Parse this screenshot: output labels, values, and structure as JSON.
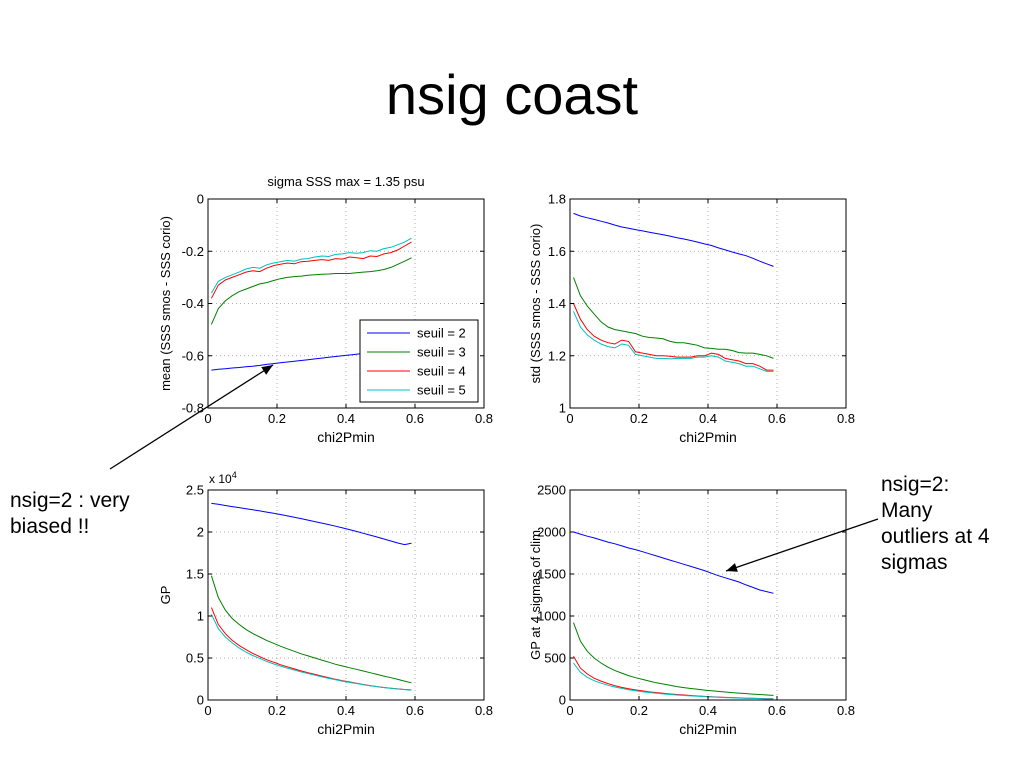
{
  "slide": {
    "title": "nsig coast"
  },
  "annotations": [
    {
      "lines": [
        "nsig=2 : very",
        "biased !!"
      ]
    },
    {
      "lines": [
        "nsig=2:",
        "Many",
        "outliers at 4",
        "sigmas"
      ]
    }
  ],
  "colors": {
    "seuil2": "#0000ff",
    "seuil3": "#008000",
    "seuil4": "#ff0000",
    "seuil5": "#00bfbf",
    "grid": "#999999",
    "axis": "#000000"
  },
  "chart_data": [
    {
      "id": "mean",
      "type": "line",
      "title": "sigma SSS max = 1.35 psu",
      "xlabel": "chi2Pmin",
      "ylabel": "mean (SSS smos - SSS corio)",
      "xlim": [
        0,
        0.8
      ],
      "ylim": [
        -0.8,
        0
      ],
      "xticks": [
        0,
        0.2,
        0.4,
        0.6,
        0.8
      ],
      "xtick_labels": [
        "0",
        "0.2",
        "0.4",
        "0.6",
        "0.8"
      ],
      "yticks": [
        -0.8,
        -0.6,
        -0.4,
        -0.2,
        0
      ],
      "ytick_labels": [
        "-0.8",
        "-0.6",
        "-0.4",
        "-0.2",
        "0"
      ],
      "grid": true,
      "legend": {
        "position": "bottom-right",
        "entries": [
          "seuil = 2",
          "seuil = 3",
          "seuil = 4",
          "seuil = 5"
        ]
      },
      "x": [
        0.01,
        0.03,
        0.05,
        0.07,
        0.09,
        0.11,
        0.13,
        0.15,
        0.17,
        0.19,
        0.21,
        0.23,
        0.25,
        0.27,
        0.29,
        0.31,
        0.33,
        0.35,
        0.37,
        0.39,
        0.41,
        0.43,
        0.45,
        0.47,
        0.49,
        0.51,
        0.53,
        0.55,
        0.57,
        0.59
      ],
      "series": [
        {
          "name": "seuil = 2",
          "color": "#0000ff",
          "values": [
            -0.655,
            -0.652,
            -0.65,
            -0.647,
            -0.645,
            -0.642,
            -0.64,
            -0.637,
            -0.633,
            -0.63,
            -0.627,
            -0.624,
            -0.621,
            -0.618,
            -0.615,
            -0.612,
            -0.609,
            -0.606,
            -0.603,
            -0.6,
            -0.597,
            -0.594,
            -0.591,
            -0.588,
            -0.585,
            -0.582,
            -0.578,
            -0.575,
            -0.572,
            -0.57
          ]
        },
        {
          "name": "seuil = 3",
          "color": "#008000",
          "values": [
            -0.48,
            -0.42,
            -0.39,
            -0.37,
            -0.355,
            -0.345,
            -0.335,
            -0.325,
            -0.32,
            -0.312,
            -0.305,
            -0.3,
            -0.297,
            -0.295,
            -0.292,
            -0.29,
            -0.288,
            -0.287,
            -0.285,
            -0.285,
            -0.285,
            -0.282,
            -0.28,
            -0.278,
            -0.275,
            -0.27,
            -0.262,
            -0.25,
            -0.238,
            -0.225
          ]
        },
        {
          "name": "seuil = 4",
          "color": "#ff0000",
          "values": [
            -0.38,
            -0.33,
            -0.31,
            -0.3,
            -0.29,
            -0.28,
            -0.275,
            -0.278,
            -0.265,
            -0.255,
            -0.25,
            -0.245,
            -0.248,
            -0.24,
            -0.238,
            -0.235,
            -0.232,
            -0.235,
            -0.228,
            -0.23,
            -0.222,
            -0.225,
            -0.228,
            -0.218,
            -0.22,
            -0.21,
            -0.205,
            -0.195,
            -0.18,
            -0.165
          ]
        },
        {
          "name": "seuil = 5",
          "color": "#00bfbf",
          "values": [
            -0.36,
            -0.315,
            -0.3,
            -0.29,
            -0.28,
            -0.268,
            -0.262,
            -0.265,
            -0.252,
            -0.245,
            -0.24,
            -0.235,
            -0.238,
            -0.23,
            -0.228,
            -0.222,
            -0.218,
            -0.22,
            -0.212,
            -0.21,
            -0.205,
            -0.208,
            -0.205,
            -0.198,
            -0.2,
            -0.19,
            -0.185,
            -0.175,
            -0.165,
            -0.15
          ]
        }
      ]
    },
    {
      "id": "std",
      "type": "line",
      "title": "",
      "xlabel": "chi2Pmin",
      "ylabel": "std (SSS smos - SSS corio)",
      "xlim": [
        0,
        0.8
      ],
      "ylim": [
        1,
        1.8
      ],
      "xticks": [
        0,
        0.2,
        0.4,
        0.6,
        0.8
      ],
      "xtick_labels": [
        "0",
        "0.2",
        "0.4",
        "0.6",
        "0.8"
      ],
      "yticks": [
        1,
        1.2,
        1.4,
        1.6,
        1.8
      ],
      "ytick_labels": [
        "1",
        "1.2",
        "1.4",
        "1.6",
        "1.8"
      ],
      "grid": true,
      "x": [
        0.01,
        0.03,
        0.05,
        0.07,
        0.09,
        0.11,
        0.13,
        0.15,
        0.17,
        0.19,
        0.21,
        0.23,
        0.25,
        0.27,
        0.29,
        0.31,
        0.33,
        0.35,
        0.37,
        0.39,
        0.41,
        0.43,
        0.45,
        0.47,
        0.49,
        0.51,
        0.53,
        0.55,
        0.57,
        0.59
      ],
      "series": [
        {
          "name": "seuil = 2",
          "color": "#0000ff",
          "values": [
            1.745,
            1.735,
            1.728,
            1.722,
            1.715,
            1.708,
            1.7,
            1.693,
            1.688,
            1.683,
            1.678,
            1.673,
            1.668,
            1.663,
            1.658,
            1.652,
            1.647,
            1.641,
            1.635,
            1.628,
            1.622,
            1.613,
            1.605,
            1.597,
            1.59,
            1.583,
            1.573,
            1.562,
            1.552,
            1.542
          ]
        },
        {
          "name": "seuil = 3",
          "color": "#008000",
          "values": [
            1.5,
            1.43,
            1.39,
            1.36,
            1.33,
            1.31,
            1.3,
            1.295,
            1.29,
            1.285,
            1.275,
            1.27,
            1.268,
            1.265,
            1.255,
            1.25,
            1.25,
            1.245,
            1.24,
            1.23,
            1.228,
            1.225,
            1.225,
            1.22,
            1.212,
            1.21,
            1.21,
            1.205,
            1.2,
            1.19
          ]
        },
        {
          "name": "seuil = 4",
          "color": "#ff0000",
          "values": [
            1.4,
            1.34,
            1.3,
            1.275,
            1.26,
            1.25,
            1.245,
            1.26,
            1.255,
            1.215,
            1.21,
            1.205,
            1.2,
            1.2,
            1.198,
            1.195,
            1.195,
            1.195,
            1.2,
            1.2,
            1.21,
            1.205,
            1.19,
            1.185,
            1.18,
            1.17,
            1.17,
            1.16,
            1.145,
            1.145
          ]
        },
        {
          "name": "seuil = 5",
          "color": "#00bfbf",
          "values": [
            1.37,
            1.31,
            1.28,
            1.26,
            1.245,
            1.235,
            1.23,
            1.245,
            1.24,
            1.205,
            1.2,
            1.195,
            1.19,
            1.19,
            1.188,
            1.19,
            1.19,
            1.19,
            1.195,
            1.195,
            1.2,
            1.195,
            1.18,
            1.175,
            1.17,
            1.16,
            1.16,
            1.15,
            1.14,
            1.14
          ]
        }
      ]
    },
    {
      "id": "gp",
      "type": "line",
      "title": "",
      "xlabel": "chi2Pmin",
      "ylabel": "GP",
      "y_multiplier_base": "x 10",
      "y_multiplier_exp": "4",
      "xlim": [
        0,
        0.8
      ],
      "ylim": [
        0,
        25000
      ],
      "xticks": [
        0,
        0.2,
        0.4,
        0.6,
        0.8
      ],
      "xtick_labels": [
        "0",
        "0.2",
        "0.4",
        "0.6",
        "0.8"
      ],
      "yticks": [
        0,
        5000,
        10000,
        15000,
        20000,
        25000
      ],
      "ytick_labels": [
        "0",
        "0.5",
        "1",
        "1.5",
        "2",
        "2.5"
      ],
      "grid": true,
      "x": [
        0.01,
        0.03,
        0.05,
        0.07,
        0.09,
        0.11,
        0.13,
        0.15,
        0.17,
        0.19,
        0.21,
        0.23,
        0.25,
        0.27,
        0.29,
        0.31,
        0.33,
        0.35,
        0.37,
        0.39,
        0.41,
        0.43,
        0.45,
        0.47,
        0.49,
        0.51,
        0.53,
        0.55,
        0.57,
        0.59
      ],
      "series": [
        {
          "name": "seuil = 2",
          "color": "#0000ff",
          "values": [
            23400,
            23300,
            23150,
            23020,
            22900,
            22770,
            22640,
            22510,
            22370,
            22230,
            22080,
            21920,
            21760,
            21590,
            21420,
            21240,
            21060,
            20880,
            20690,
            20490,
            20280,
            20070,
            19850,
            19630,
            19400,
            19170,
            18930,
            18690,
            18500,
            18650
          ]
        },
        {
          "name": "seuil = 3",
          "color": "#008000",
          "values": [
            14800,
            12200,
            10700,
            9700,
            9000,
            8400,
            7900,
            7500,
            7100,
            6750,
            6400,
            6100,
            5800,
            5500,
            5250,
            5000,
            4750,
            4500,
            4250,
            4050,
            3850,
            3650,
            3450,
            3250,
            3050,
            2850,
            2650,
            2450,
            2250,
            2050
          ]
        },
        {
          "name": "seuil = 4",
          "color": "#ff0000",
          "values": [
            11000,
            9000,
            7900,
            7100,
            6500,
            6000,
            5550,
            5150,
            4800,
            4500,
            4200,
            3950,
            3700,
            3470,
            3250,
            3050,
            2850,
            2650,
            2470,
            2300,
            2150,
            2000,
            1850,
            1720,
            1600,
            1490,
            1400,
            1320,
            1250,
            1200
          ]
        },
        {
          "name": "seuil = 5",
          "color": "#00bfbf",
          "values": [
            10200,
            8500,
            7500,
            6800,
            6200,
            5700,
            5300,
            4950,
            4600,
            4300,
            4050,
            3800,
            3570,
            3350,
            3150,
            2950,
            2750,
            2570,
            2400,
            2240,
            2100,
            1960,
            1820,
            1700,
            1590,
            1480,
            1390,
            1310,
            1240,
            1180
          ]
        }
      ]
    },
    {
      "id": "gp4",
      "type": "line",
      "title": "",
      "xlabel": "chi2Pmin",
      "ylabel": "GP at 4 sigmas of clim",
      "xlim": [
        0,
        0.8
      ],
      "ylim": [
        0,
        2500
      ],
      "xticks": [
        0,
        0.2,
        0.4,
        0.6,
        0.8
      ],
      "xtick_labels": [
        "0",
        "0.2",
        "0.4",
        "0.6",
        "0.8"
      ],
      "yticks": [
        0,
        500,
        1000,
        1500,
        2000,
        2500
      ],
      "ytick_labels": [
        "0",
        "500",
        "1000",
        "1500",
        "2000",
        "2500"
      ],
      "grid": true,
      "x": [
        0.01,
        0.03,
        0.05,
        0.07,
        0.09,
        0.11,
        0.13,
        0.15,
        0.17,
        0.19,
        0.21,
        0.23,
        0.25,
        0.27,
        0.29,
        0.31,
        0.33,
        0.35,
        0.37,
        0.39,
        0.41,
        0.43,
        0.45,
        0.47,
        0.49,
        0.51,
        0.53,
        0.55,
        0.57,
        0.59
      ],
      "series": [
        {
          "name": "seuil = 2",
          "color": "#0000ff",
          "values": [
            2000,
            1975,
            1950,
            1930,
            1905,
            1880,
            1860,
            1835,
            1810,
            1790,
            1765,
            1740,
            1715,
            1690,
            1665,
            1640,
            1615,
            1590,
            1565,
            1540,
            1510,
            1480,
            1455,
            1430,
            1405,
            1370,
            1340,
            1310,
            1290,
            1270
          ]
        },
        {
          "name": "seuil = 3",
          "color": "#008000",
          "values": [
            920,
            700,
            580,
            500,
            440,
            390,
            350,
            320,
            290,
            265,
            245,
            225,
            205,
            190,
            175,
            160,
            148,
            137,
            127,
            118,
            110,
            102,
            95,
            88,
            82,
            76,
            70,
            65,
            60,
            55
          ]
        },
        {
          "name": "seuil = 4",
          "color": "#ff0000",
          "values": [
            520,
            380,
            310,
            260,
            225,
            195,
            170,
            150,
            135,
            120,
            108,
            97,
            88,
            80,
            72,
            65,
            59,
            53,
            48,
            43,
            39,
            35,
            31,
            28,
            25,
            22,
            20,
            18,
            16,
            14
          ]
        },
        {
          "name": "seuil = 5",
          "color": "#00bfbf",
          "values": [
            440,
            330,
            270,
            230,
            200,
            175,
            155,
            138,
            123,
            110,
            99,
            89,
            81,
            73,
            66,
            60,
            54,
            49,
            44,
            40,
            36,
            32,
            29,
            26,
            23,
            21,
            19,
            17,
            15,
            13
          ]
        }
      ]
    }
  ]
}
